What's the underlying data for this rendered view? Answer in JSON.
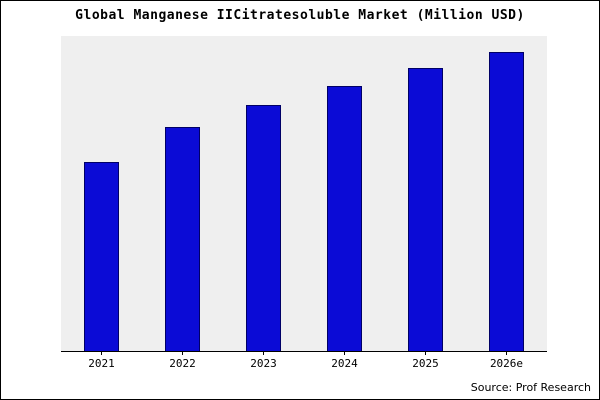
{
  "chart_data": {
    "type": "bar",
    "title": "Global Manganese IICitratesoluble Market (Million USD)",
    "categories": [
      "2021",
      "2022",
      "2023",
      "2024",
      "2025",
      "2026e"
    ],
    "values": [
      60,
      71,
      78,
      84,
      90,
      95
    ],
    "ylim": [
      0,
      100
    ],
    "xlabel": "",
    "ylabel": "",
    "grid": false,
    "legend": "none",
    "bar_color": "#0b0bd6",
    "bar_border_color": "#000066",
    "plot_background": "#efefef",
    "source": "Source: Prof Research"
  }
}
